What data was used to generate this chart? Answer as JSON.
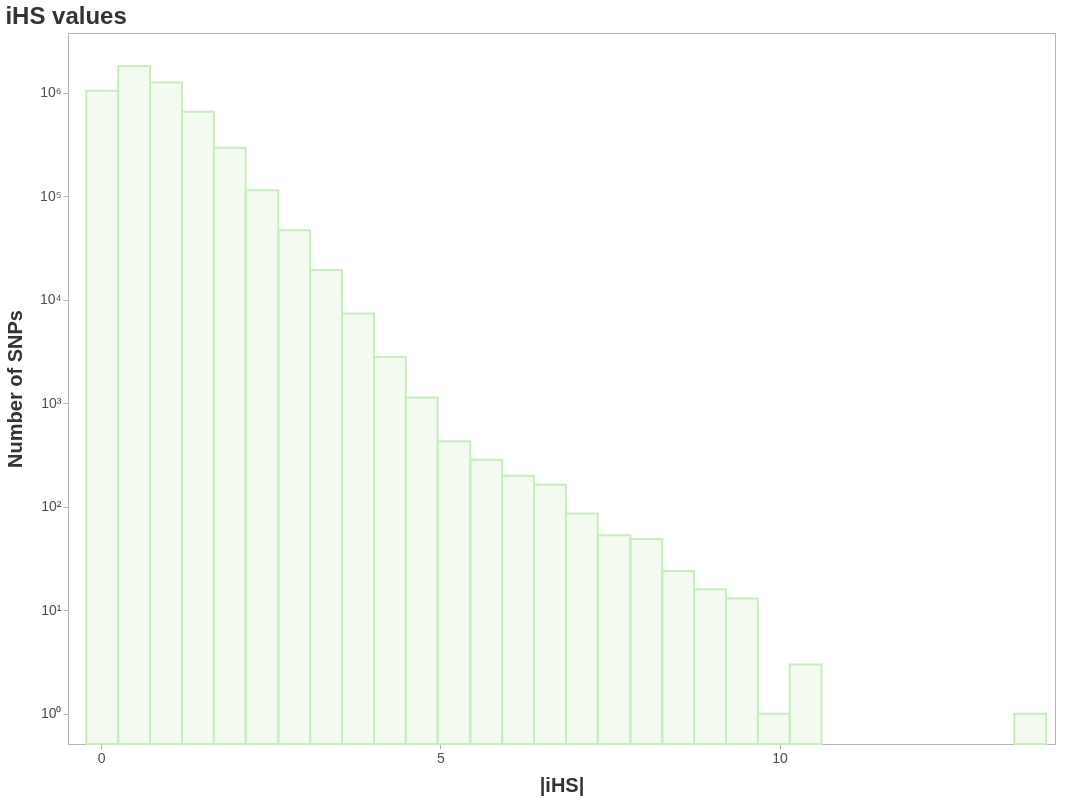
{
  "chart_data": {
    "type": "histogram",
    "title": "iHS values",
    "xlabel": "|iHS|",
    "ylabel": "Number of SNPs",
    "bins": [
      -0.22,
      0.25,
      0.72,
      1.19,
      1.66,
      2.13,
      2.61,
      3.08,
      3.55,
      4.02,
      4.49,
      4.96,
      5.44,
      5.91,
      6.38,
      6.85,
      7.32,
      7.8,
      8.27,
      8.74,
      9.21,
      9.68,
      10.15,
      10.62,
      13.46,
      13.93
    ],
    "values": [
      1050000,
      1820000,
      1260000,
      660000,
      295000,
      115000,
      47000,
      19500,
      7400,
      2800,
      1140,
      430,
      285,
      200,
      163,
      86,
      53,
      49,
      24,
      16,
      13,
      1,
      3,
      null,
      1
    ],
    "color": "#c8ecbc",
    "log": "y",
    "grid": false,
    "xlim": [
      -0.49,
      14.06
    ],
    "xticks": [
      0,
      5,
      10
    ],
    "ylim": [
      0.51,
      3800000
    ],
    "yticks": [
      {
        "value": 1,
        "label": "10⁰"
      },
      {
        "value": 10,
        "label": "10¹"
      },
      {
        "value": 100,
        "label": "10²"
      },
      {
        "value": 1000,
        "label": "10³"
      },
      {
        "value": 10000,
        "label": "10⁴"
      },
      {
        "value": 100000,
        "label": "10⁵"
      },
      {
        "value": 1000000,
        "label": "10⁶"
      }
    ]
  }
}
